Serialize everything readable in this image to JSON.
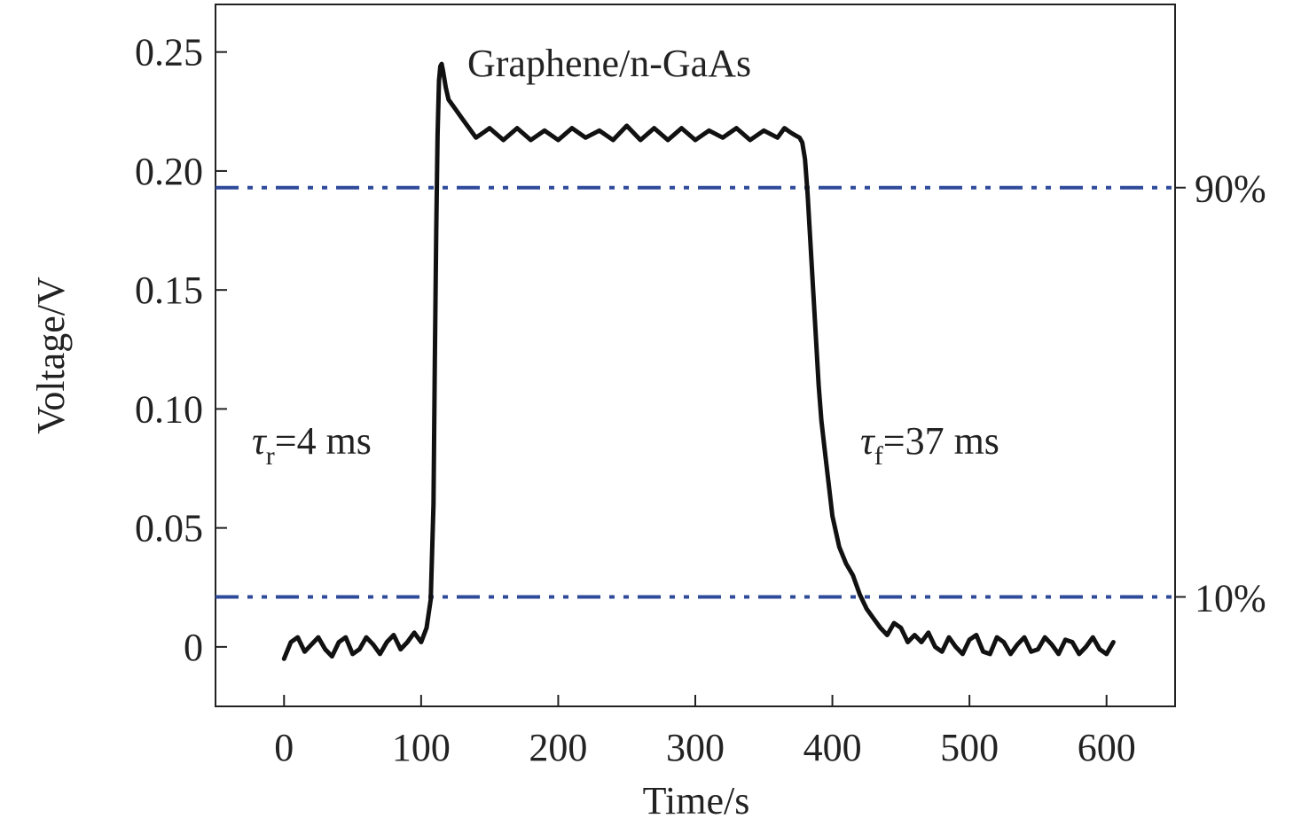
{
  "chart_data": {
    "type": "line",
    "title": "Graphene/n-GaAs",
    "xlabel": "Time/s",
    "ylabel": "Voltage/V",
    "xlim": [
      -50,
      650
    ],
    "ylim": [
      -0.025,
      0.27
    ],
    "x_ticks": [
      0,
      100,
      200,
      300,
      400,
      500,
      600
    ],
    "y_ticks": [
      0,
      0.05,
      0.1,
      0.15,
      0.2,
      0.25
    ],
    "x_tick_labels": [
      "0",
      "100",
      "200",
      "300",
      "400",
      "500",
      "600"
    ],
    "y_tick_labels": [
      "0",
      "0.05",
      "0.10",
      "0.15",
      "0.20",
      "0.25"
    ],
    "grid": false,
    "colors": {
      "series": "#111111",
      "reference": "#2e4a9a",
      "axis": "#222222"
    },
    "series": [
      {
        "x": [
          0,
          5,
          10,
          15,
          20,
          25,
          30,
          35,
          40,
          45,
          50,
          55,
          60,
          65,
          70,
          75,
          80,
          85,
          90,
          95,
          100,
          104,
          107,
          109,
          110,
          111,
          112,
          113,
          114,
          115,
          116,
          118,
          120,
          125,
          130,
          135,
          140,
          145,
          150,
          160,
          170,
          180,
          190,
          200,
          210,
          220,
          230,
          240,
          250,
          260,
          270,
          280,
          290,
          300,
          310,
          320,
          330,
          340,
          350,
          360,
          365,
          370,
          373,
          376,
          378,
          380,
          382,
          384,
          386,
          388,
          390,
          392,
          395,
          398,
          400,
          405,
          410,
          415,
          420,
          425,
          430,
          435,
          440,
          445,
          450,
          455,
          460,
          465,
          470,
          475,
          480,
          485,
          490,
          495,
          500,
          505,
          510,
          515,
          520,
          525,
          530,
          535,
          540,
          545,
          550,
          555,
          560,
          565,
          570,
          575,
          580,
          585,
          590,
          595,
          600,
          605
        ],
        "values": [
          -0.005,
          0.002,
          0.004,
          -0.002,
          0.001,
          0.004,
          -0.001,
          -0.004,
          0.002,
          0.004,
          -0.003,
          -0.001,
          0.004,
          0.001,
          -0.003,
          0.002,
          0.005,
          -0.001,
          0.002,
          0.006,
          0.002,
          0.008,
          0.02,
          0.06,
          0.12,
          0.175,
          0.215,
          0.238,
          0.244,
          0.245,
          0.242,
          0.235,
          0.23,
          0.226,
          0.222,
          0.218,
          0.214,
          0.216,
          0.218,
          0.213,
          0.218,
          0.213,
          0.217,
          0.213,
          0.218,
          0.214,
          0.217,
          0.213,
          0.219,
          0.213,
          0.218,
          0.213,
          0.218,
          0.213,
          0.217,
          0.214,
          0.218,
          0.213,
          0.217,
          0.214,
          0.218,
          0.216,
          0.215,
          0.214,
          0.212,
          0.205,
          0.19,
          0.17,
          0.15,
          0.13,
          0.11,
          0.095,
          0.08,
          0.065,
          0.055,
          0.042,
          0.035,
          0.03,
          0.022,
          0.016,
          0.012,
          0.008,
          0.005,
          0.01,
          0.008,
          0.002,
          0.005,
          0.002,
          0.006,
          0.0,
          -0.002,
          0.004,
          0.0,
          -0.003,
          0.003,
          0.005,
          -0.002,
          -0.003,
          0.004,
          0.002,
          -0.003,
          0.001,
          0.004,
          -0.002,
          -0.001,
          0.004,
          0.001,
          -0.003,
          0.003,
          0.002,
          -0.003,
          0.0,
          0.004,
          -0.001,
          -0.003,
          0.002
        ]
      }
    ],
    "reference_lines": [
      {
        "y": 0.193,
        "label": "90%"
      },
      {
        "y": 0.021,
        "label": "10%"
      }
    ],
    "annotations": {
      "rise": {
        "symbol": "τ",
        "sub": "r",
        "text": "=4 ms"
      },
      "fall": {
        "symbol": "τ",
        "sub": "f",
        "text": "=37 ms"
      }
    }
  }
}
